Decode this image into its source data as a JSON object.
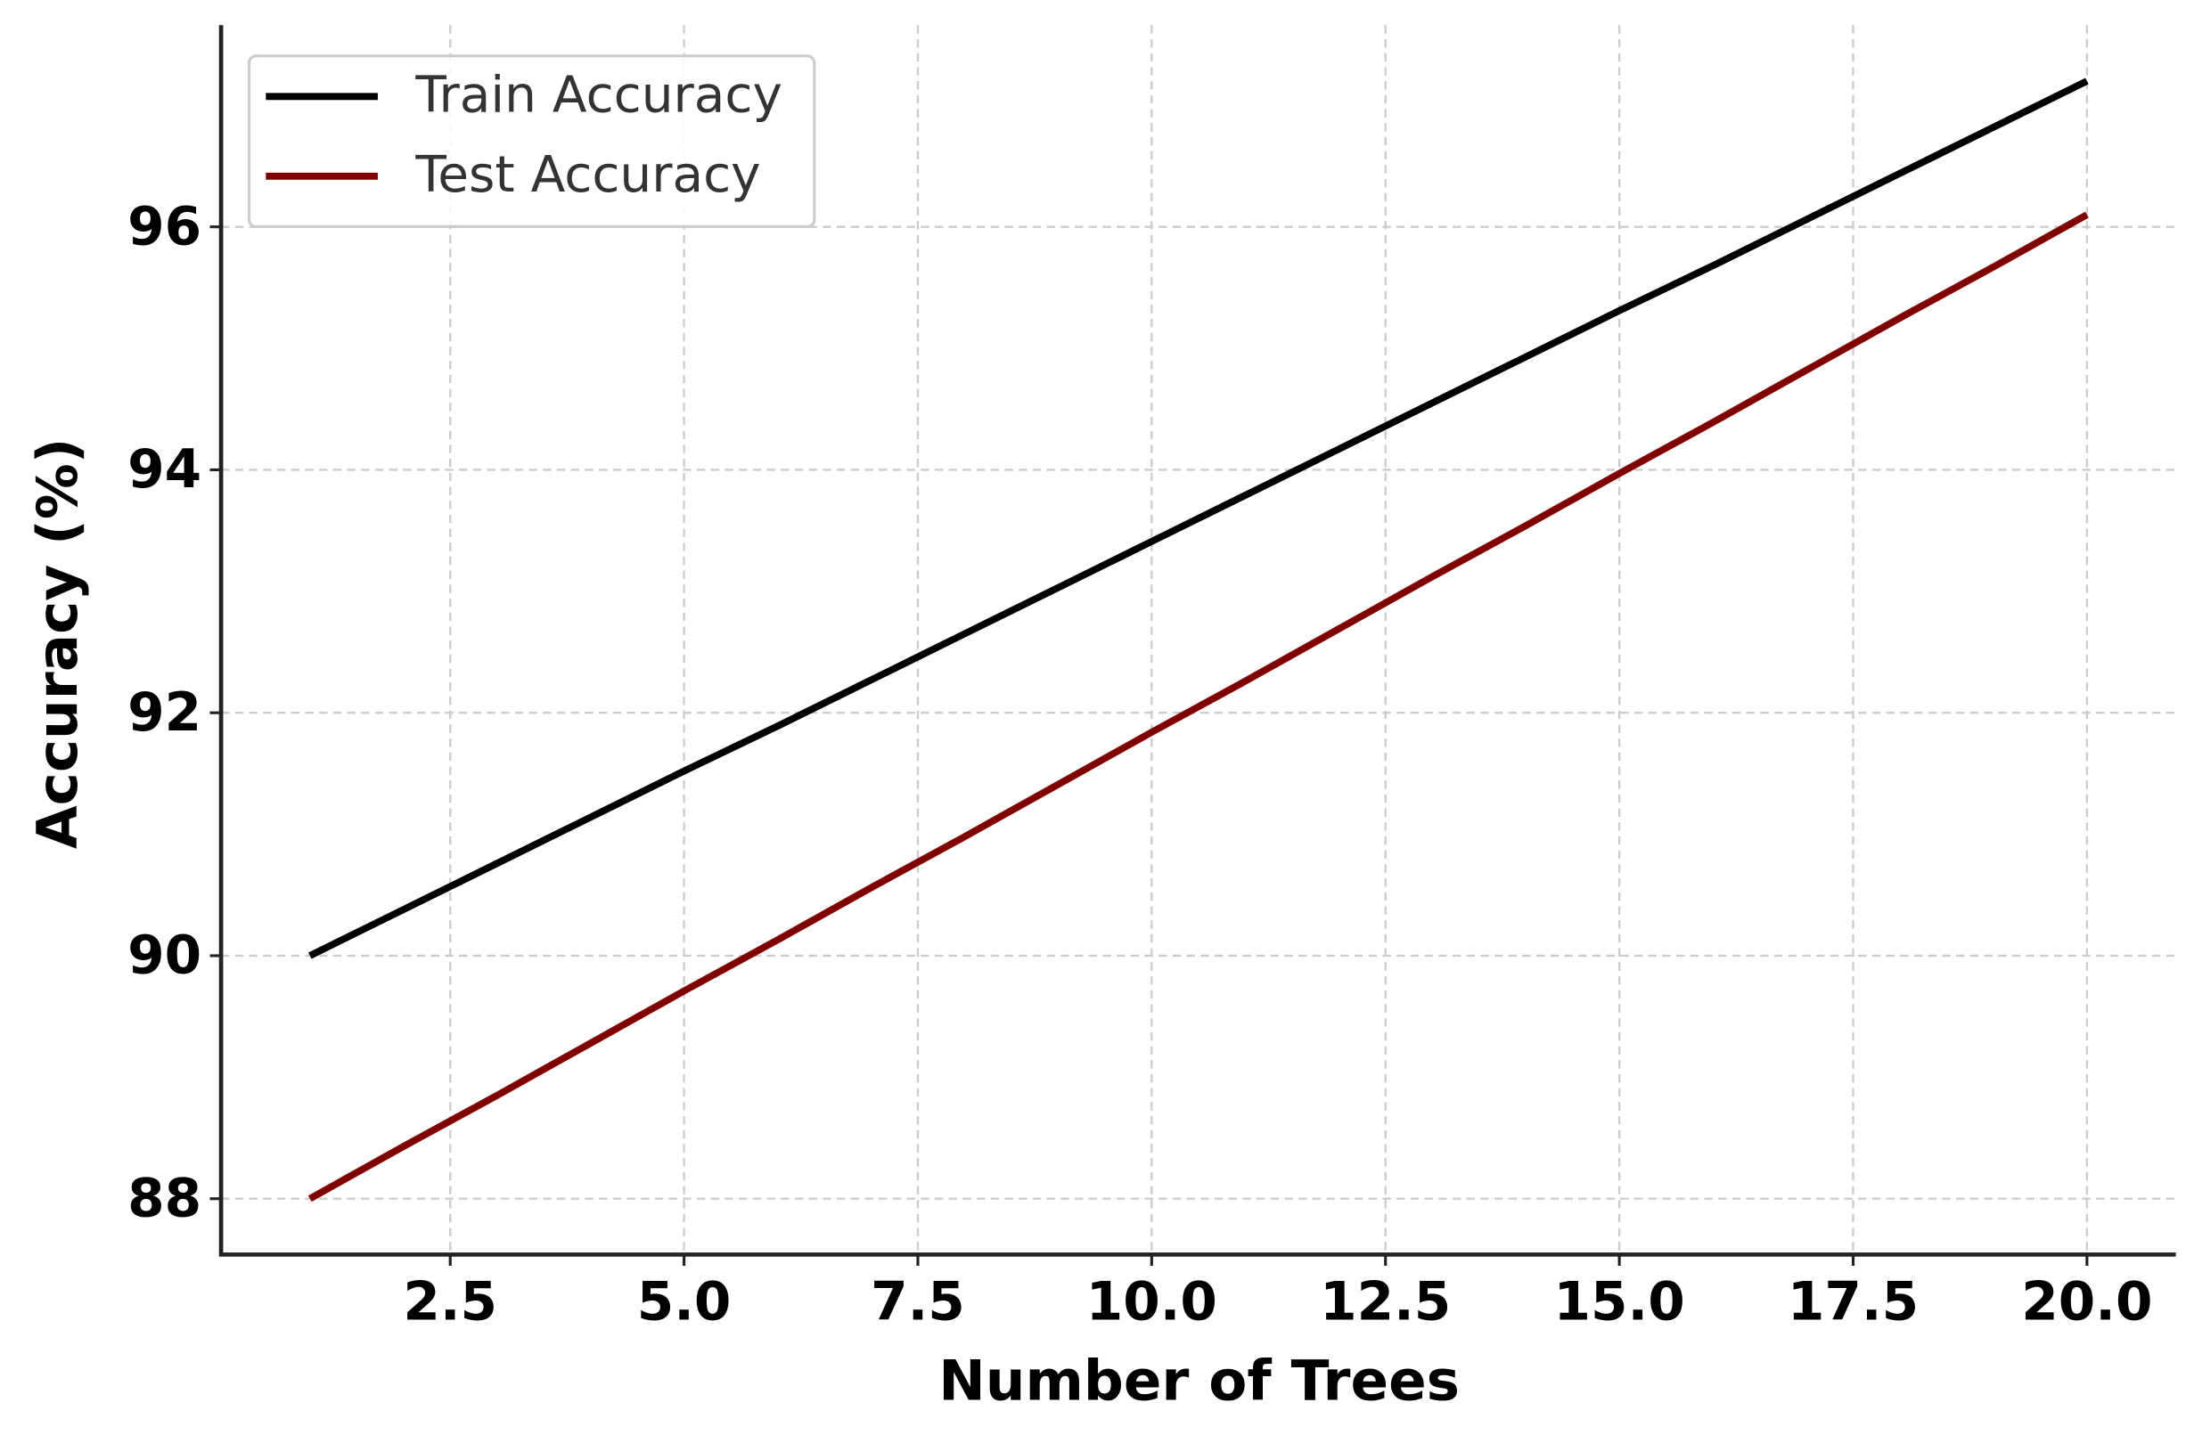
{
  "chart_data": {
    "type": "line",
    "xlabel": "Number of Trees",
    "ylabel": "Accuracy (%)",
    "x": [
      1,
      2,
      3,
      4,
      5,
      6,
      7,
      8,
      9,
      10,
      11,
      12,
      13,
      14,
      15,
      16,
      17,
      18,
      19,
      20
    ],
    "series": [
      {
        "name": "Train Accuracy",
        "color": "#000000",
        "values": [
          90,
          90.38,
          90.76,
          91.14,
          91.52,
          91.89,
          92.27,
          92.65,
          93.03,
          93.41,
          93.79,
          94.17,
          94.55,
          94.93,
          95.31,
          95.68,
          96.06,
          96.44,
          96.82,
          97.2
        ]
      },
      {
        "name": "Test Accuracy",
        "color": "#800000",
        "values": [
          88,
          88.43,
          88.85,
          89.28,
          89.71,
          90.13,
          90.56,
          90.98,
          91.41,
          91.84,
          92.26,
          92.69,
          93.12,
          93.54,
          93.97,
          94.39,
          94.82,
          95.25,
          95.67,
          96.1
        ]
      }
    ],
    "xlim": [
      0.05,
      20.95
    ],
    "xticks": [
      2.5,
      {
        "value": 5,
        "label": "5.0"
      },
      7.5,
      {
        "value": 10,
        "label": "10.0"
      },
      12.5,
      {
        "value": 15,
        "label": "15.0"
      },
      17.5,
      {
        "value": 20,
        "label": "20.0"
      }
    ],
    "ylim": [
      87.54,
      97.66
    ],
    "yticks": [
      88,
      90,
      92,
      94,
      96
    ],
    "grid": true,
    "legend": "upper left"
  }
}
